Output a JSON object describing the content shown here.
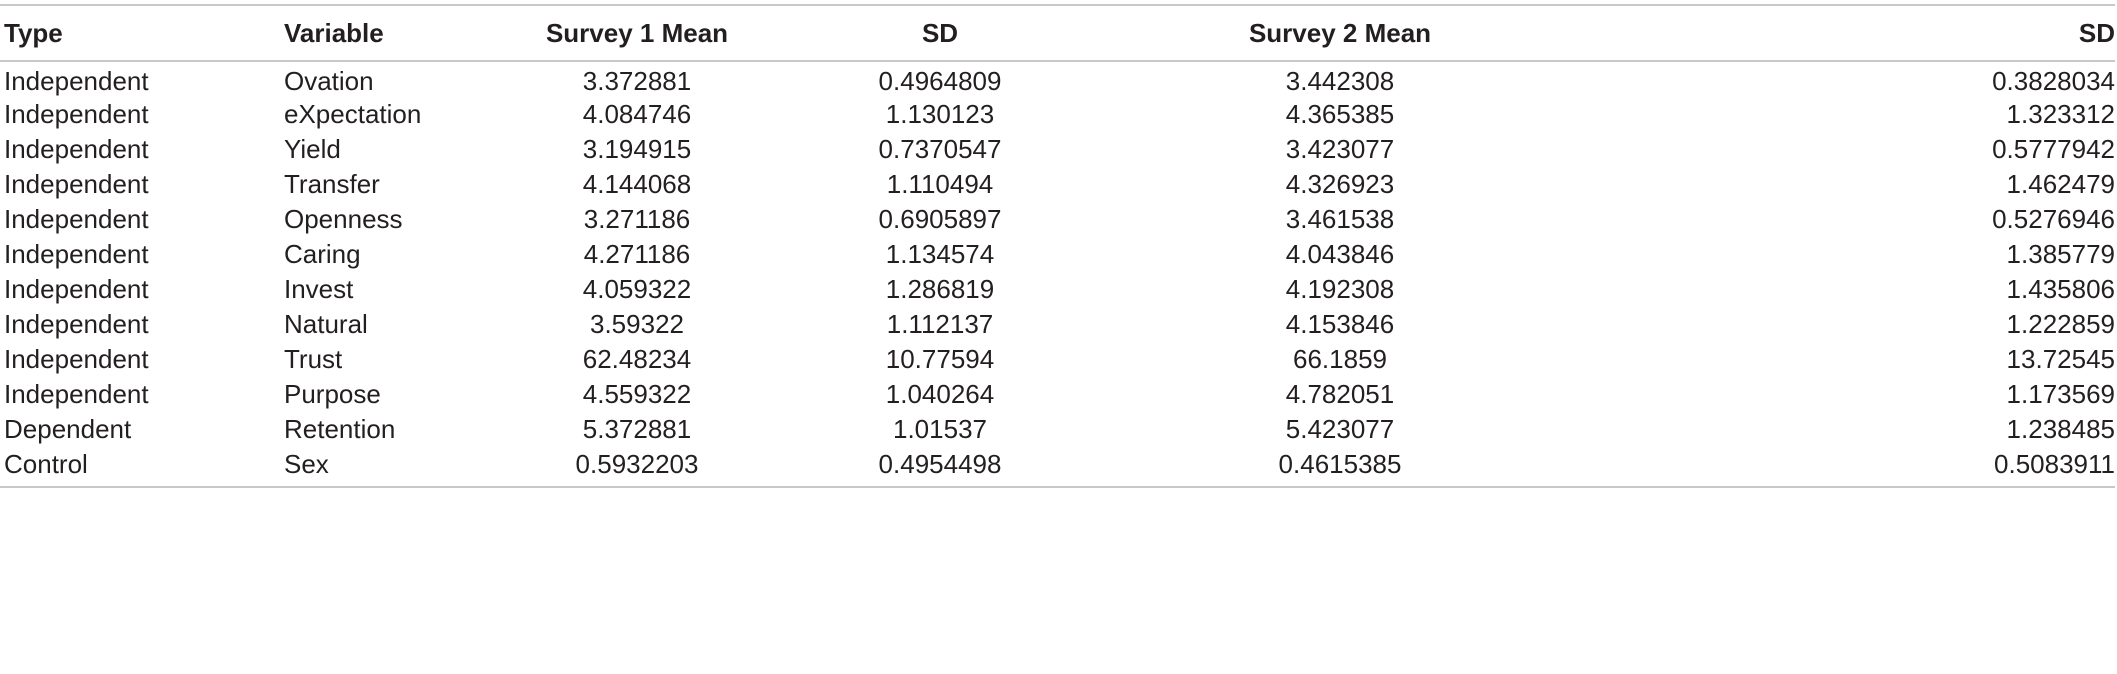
{
  "table": {
    "headers": [
      "Type",
      "Variable",
      "Survey 1 Mean",
      "SD",
      "Survey 2 Mean",
      "SD"
    ],
    "rows": [
      [
        "Independent",
        "Ovation",
        "3.372881",
        "0.4964809",
        "3.442308",
        "0.3828034"
      ],
      [
        "Independent",
        "eXpectation",
        "4.084746",
        "1.130123",
        "4.365385",
        "1.323312"
      ],
      [
        "Independent",
        "Yield",
        "3.194915",
        "0.7370547",
        "3.423077",
        "0.5777942"
      ],
      [
        "Independent",
        "Transfer",
        "4.144068",
        "1.110494",
        "4.326923",
        "1.462479"
      ],
      [
        "Independent",
        "Openness",
        "3.271186",
        "0.6905897",
        "3.461538",
        "0.5276946"
      ],
      [
        "Independent",
        "Caring",
        "4.271186",
        "1.134574",
        "4.043846",
        "1.385779"
      ],
      [
        "Independent",
        "Invest",
        "4.059322",
        "1.286819",
        "4.192308",
        "1.435806"
      ],
      [
        "Independent",
        "Natural",
        "3.59322",
        "1.112137",
        "4.153846",
        "1.222859"
      ],
      [
        "Independent",
        "Trust",
        "62.48234",
        "10.77594",
        "66.1859",
        "13.72545"
      ],
      [
        "Independent",
        "Purpose",
        "4.559322",
        "1.040264",
        "4.782051",
        "1.173569"
      ],
      [
        "Dependent",
        "Retention",
        "5.372881",
        "1.01537",
        "5.423077",
        "1.238485"
      ],
      [
        "Control",
        "Sex",
        "0.5932203",
        "0.4954498",
        "0.4615385",
        "0.5083911"
      ]
    ]
  }
}
